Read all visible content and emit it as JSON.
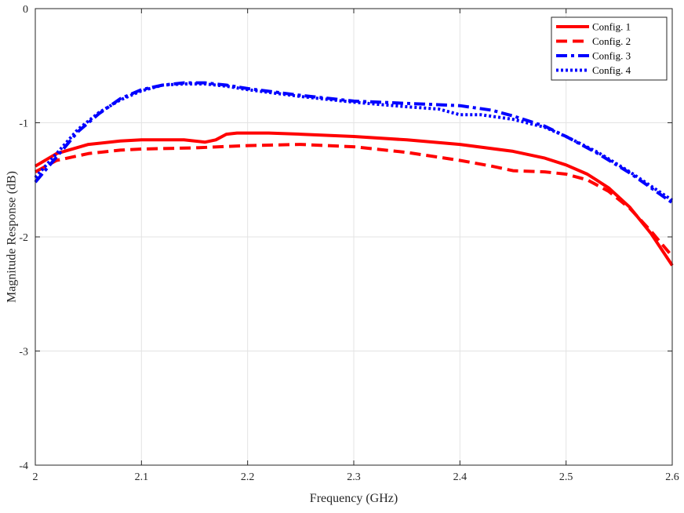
{
  "chart_data": {
    "type": "line",
    "title": "",
    "xlabel": "Frequency (GHz)",
    "ylabel": "Magnitude Response (dB)",
    "xlim": [
      2,
      2.6
    ],
    "ylim": [
      -4,
      0
    ],
    "xticks": [
      2,
      2.1,
      2.2,
      2.3,
      2.4,
      2.5,
      2.6
    ],
    "xtick_labels": [
      "2",
      "2.1",
      "2.2",
      "2.3",
      "2.4",
      "2.5",
      "2.6"
    ],
    "yticks": [
      -4,
      -3,
      -2,
      -1,
      0
    ],
    "ytick_labels": [
      "-4",
      "-3",
      "-2",
      "-1",
      "0"
    ],
    "grid": true,
    "legend_position": "top-right",
    "series": [
      {
        "name": "Config. 1",
        "color": "#ff0000",
        "style": "solid",
        "x": [
          2.0,
          2.02,
          2.05,
          2.08,
          2.1,
          2.12,
          2.14,
          2.16,
          2.17,
          2.18,
          2.19,
          2.2,
          2.22,
          2.25,
          2.3,
          2.35,
          2.4,
          2.45,
          2.48,
          2.5,
          2.52,
          2.54,
          2.56,
          2.58,
          2.6
        ],
        "y": [
          -1.38,
          -1.27,
          -1.19,
          -1.16,
          -1.15,
          -1.15,
          -1.15,
          -1.17,
          -1.15,
          -1.1,
          -1.09,
          -1.09,
          -1.09,
          -1.1,
          -1.12,
          -1.15,
          -1.19,
          -1.25,
          -1.31,
          -1.37,
          -1.45,
          -1.57,
          -1.74,
          -1.97,
          -2.25
        ]
      },
      {
        "name": "Config. 2",
        "color": "#ff0000",
        "style": "dashed",
        "x": [
          2.0,
          2.02,
          2.05,
          2.08,
          2.1,
          2.15,
          2.2,
          2.25,
          2.3,
          2.35,
          2.4,
          2.43,
          2.45,
          2.48,
          2.5,
          2.52,
          2.54,
          2.56,
          2.58,
          2.6
        ],
        "y": [
          -1.43,
          -1.33,
          -1.27,
          -1.24,
          -1.23,
          -1.22,
          -1.2,
          -1.19,
          -1.21,
          -1.26,
          -1.33,
          -1.38,
          -1.42,
          -1.43,
          -1.45,
          -1.5,
          -1.6,
          -1.75,
          -1.95,
          -2.17
        ]
      },
      {
        "name": "Config. 3",
        "color": "#0000ff",
        "style": "dashdot",
        "x": [
          2.0,
          2.02,
          2.04,
          2.06,
          2.08,
          2.1,
          2.12,
          2.14,
          2.16,
          2.18,
          2.2,
          2.25,
          2.3,
          2.35,
          2.4,
          2.43,
          2.45,
          2.48,
          2.5,
          2.53,
          2.56,
          2.6
        ],
        "y": [
          -1.52,
          -1.3,
          -1.08,
          -0.92,
          -0.79,
          -0.71,
          -0.67,
          -0.65,
          -0.65,
          -0.67,
          -0.7,
          -0.76,
          -0.81,
          -0.83,
          -0.85,
          -0.89,
          -0.94,
          -1.03,
          -1.12,
          -1.27,
          -1.44,
          -1.7
        ]
      },
      {
        "name": "Config. 4",
        "color": "#0000ff",
        "style": "dotted",
        "x": [
          2.0,
          2.02,
          2.04,
          2.06,
          2.08,
          2.1,
          2.12,
          2.14,
          2.16,
          2.18,
          2.2,
          2.25,
          2.3,
          2.35,
          2.38,
          2.4,
          2.42,
          2.45,
          2.48,
          2.5,
          2.53,
          2.56,
          2.6
        ],
        "y": [
          -1.48,
          -1.27,
          -1.06,
          -0.91,
          -0.8,
          -0.72,
          -0.67,
          -0.66,
          -0.66,
          -0.68,
          -0.71,
          -0.77,
          -0.82,
          -0.86,
          -0.88,
          -0.93,
          -0.93,
          -0.97,
          -1.04,
          -1.12,
          -1.26,
          -1.43,
          -1.68
        ]
      }
    ]
  }
}
